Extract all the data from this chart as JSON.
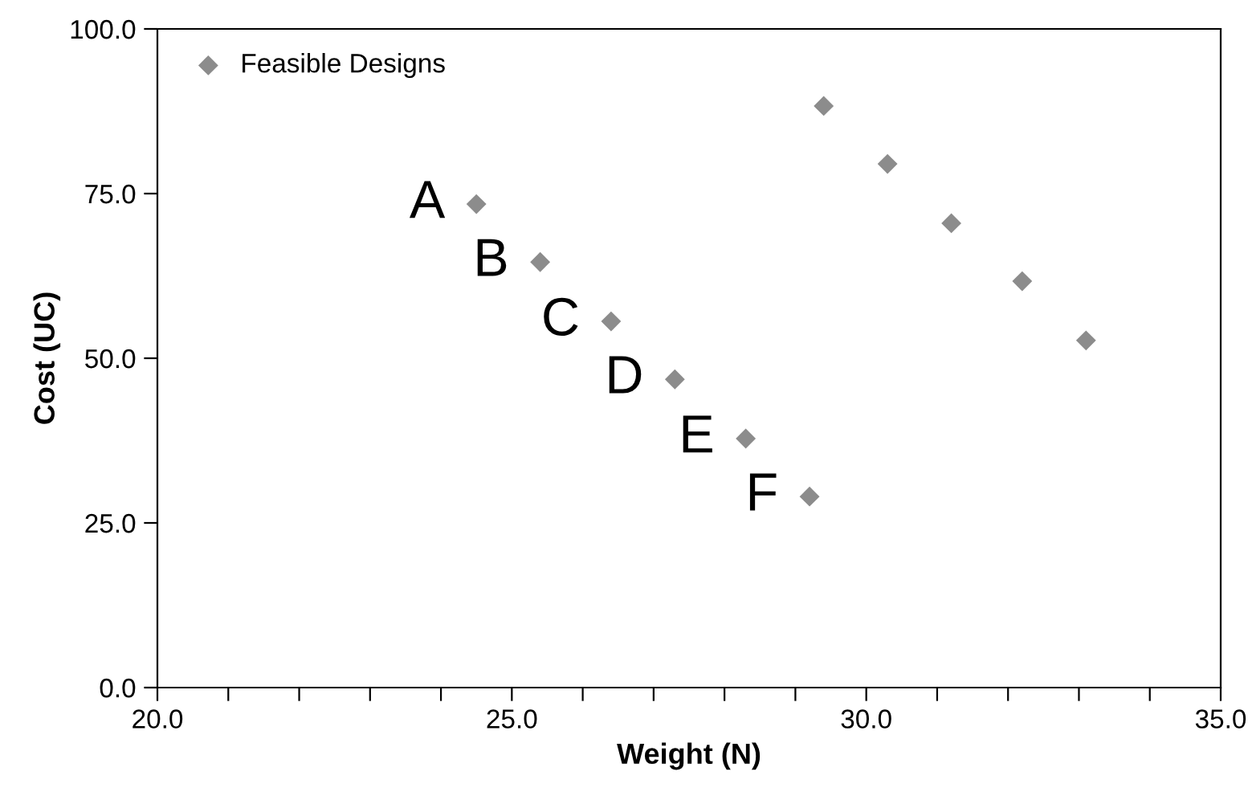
{
  "chart_data": {
    "type": "scatter",
    "xlabel": "Weight (N)",
    "ylabel": "Cost (UC)",
    "series": [
      {
        "name": "Feasible Designs",
        "color": "#8c8c8c",
        "x": [
          24.5,
          25.4,
          26.4,
          27.3,
          28.3,
          29.2,
          29.4,
          30.3,
          31.2,
          32.2,
          33.1
        ],
        "values": [
          73.4,
          64.6,
          55.6,
          46.8,
          37.8,
          29.0,
          88.3,
          79.5,
          70.5,
          61.7,
          52.7
        ]
      }
    ],
    "annotations": [
      {
        "text": "A",
        "x": 24.5,
        "y": 73.4
      },
      {
        "text": "B",
        "x": 25.4,
        "y": 64.6
      },
      {
        "text": "C",
        "x": 26.4,
        "y": 55.6
      },
      {
        "text": "D",
        "x": 27.3,
        "y": 46.8
      },
      {
        "text": "E",
        "x": 28.3,
        "y": 37.8
      },
      {
        "text": "F",
        "x": 29.2,
        "y": 29.0
      }
    ],
    "xlim": [
      20,
      35
    ],
    "ylim": [
      0,
      100
    ],
    "xticks": [
      {
        "value": 20,
        "label": "20.0"
      },
      {
        "value": 21,
        "label": null
      },
      {
        "value": 22,
        "label": null
      },
      {
        "value": 23,
        "label": null
      },
      {
        "value": 24,
        "label": null
      },
      {
        "value": 25,
        "label": "25.0"
      },
      {
        "value": 26,
        "label": null
      },
      {
        "value": 27,
        "label": null
      },
      {
        "value": 28,
        "label": null
      },
      {
        "value": 29,
        "label": null
      },
      {
        "value": 30,
        "label": "30.0"
      },
      {
        "value": 31,
        "label": null
      },
      {
        "value": 32,
        "label": null
      },
      {
        "value": 33,
        "label": null
      },
      {
        "value": 34,
        "label": null
      },
      {
        "value": 35,
        "label": "35.0"
      }
    ],
    "yticks": [
      {
        "value": 0,
        "label": "0.0"
      },
      {
        "value": 25,
        "label": "25.0"
      },
      {
        "value": 50,
        "label": "50.0"
      },
      {
        "value": 75,
        "label": "75.0"
      },
      {
        "value": 100,
        "label": "100.0"
      }
    ],
    "grid": false,
    "legend": "top left",
    "marker": "diamond"
  }
}
